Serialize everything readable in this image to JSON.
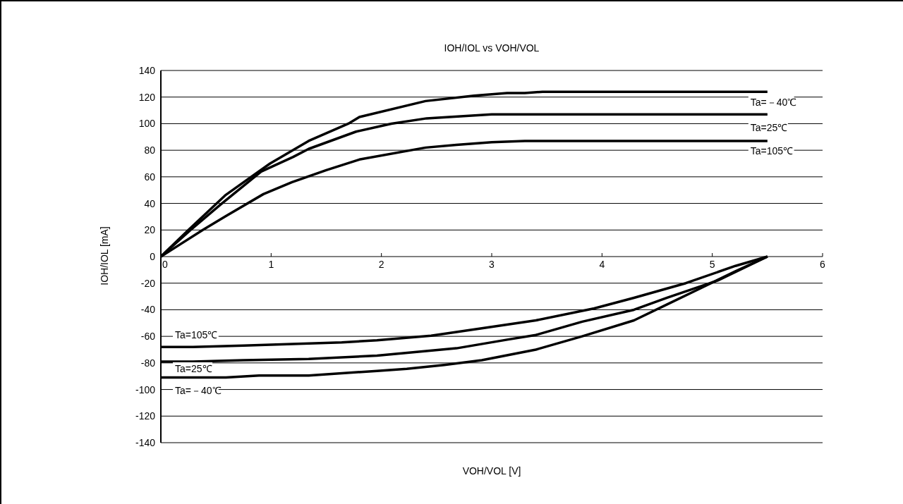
{
  "chart_data": {
    "type": "line",
    "title": "IOH/IOL vs VOH/VOL",
    "xlabel": "VOH/VOL [V]",
    "ylabel": "IOH/IOL [mA]",
    "xlim": [
      0,
      6
    ],
    "xticks": [
      0,
      1,
      2,
      3,
      4,
      5,
      6
    ],
    "ylim": [
      -140,
      140
    ],
    "yticks": [
      -140,
      -120,
      -100,
      -80,
      -60,
      -40,
      -20,
      0,
      20,
      40,
      60,
      80,
      100,
      120,
      140
    ],
    "grid": "y",
    "legend": false,
    "marker": "none",
    "line_style": "solid",
    "series": [
      {
        "name": "Ta=－40℃",
        "color": "#000000",
        "x": [
          0,
          0.25,
          0.59,
          0.99,
          1.34,
          1.7,
          1.8,
          2.4,
          2.84,
          3.14,
          3.3,
          3.46,
          5.5
        ],
        "values": [
          0,
          20,
          46.5,
          70,
          87,
          100,
          105,
          117,
          121,
          123,
          123,
          124,
          124
        ]
      },
      {
        "name": "Ta=25℃",
        "color": "#000000",
        "x": [
          0,
          0.27,
          0.54,
          0.91,
          1.2,
          1.34,
          1.77,
          2.09,
          2.41,
          3.0,
          5.5
        ],
        "values": [
          0,
          20,
          39,
          64,
          75,
          81,
          94,
          100,
          104,
          107,
          107
        ]
      },
      {
        "name": "Ta=105℃",
        "color": "#000000",
        "x": [
          0,
          0.38,
          0.59,
          0.93,
          1.19,
          1.5,
          1.8,
          2.4,
          2.68,
          3.0,
          3.3,
          5.5
        ],
        "values": [
          0,
          20,
          30.5,
          47,
          56,
          65,
          73,
          82,
          84,
          86,
          87,
          87
        ]
      },
      {
        "name": "Ta=105℃",
        "color": "#000000",
        "x": [
          0,
          0.29,
          0.75,
          1.64,
          1.96,
          2.45,
          2.91,
          3.4,
          3.93,
          4.29,
          4.76,
          5.21,
          5.5
        ],
        "values": [
          -68,
          -68,
          -67,
          -64.5,
          -63,
          -59.5,
          -54,
          -48,
          -39,
          -31,
          -20,
          -7,
          0
        ]
      },
      {
        "name": "Ta=25℃",
        "color": "#000000",
        "x": [
          0,
          0.29,
          0.75,
          1.34,
          1.96,
          2.68,
          3.14,
          3.4,
          3.82,
          4.29,
          4.59,
          5.05,
          5.5
        ],
        "values": [
          -79,
          -79,
          -78,
          -77,
          -74.5,
          -69,
          -62.5,
          -59,
          -49,
          -40,
          -31,
          -18,
          0
        ]
      },
      {
        "name": "Ta=－40℃",
        "color": "#000000",
        "x": [
          0,
          0.59,
          0.89,
          1.34,
          1.96,
          2.23,
          2.57,
          2.91,
          3.4,
          3.82,
          4.29,
          4.59,
          4.89,
          5.21,
          5.5
        ],
        "values": [
          -91,
          -91,
          -89.5,
          -89.5,
          -86,
          -84.5,
          -81.5,
          -78,
          -70,
          -60,
          -48,
          -36,
          -24,
          -11,
          0
        ]
      }
    ]
  }
}
